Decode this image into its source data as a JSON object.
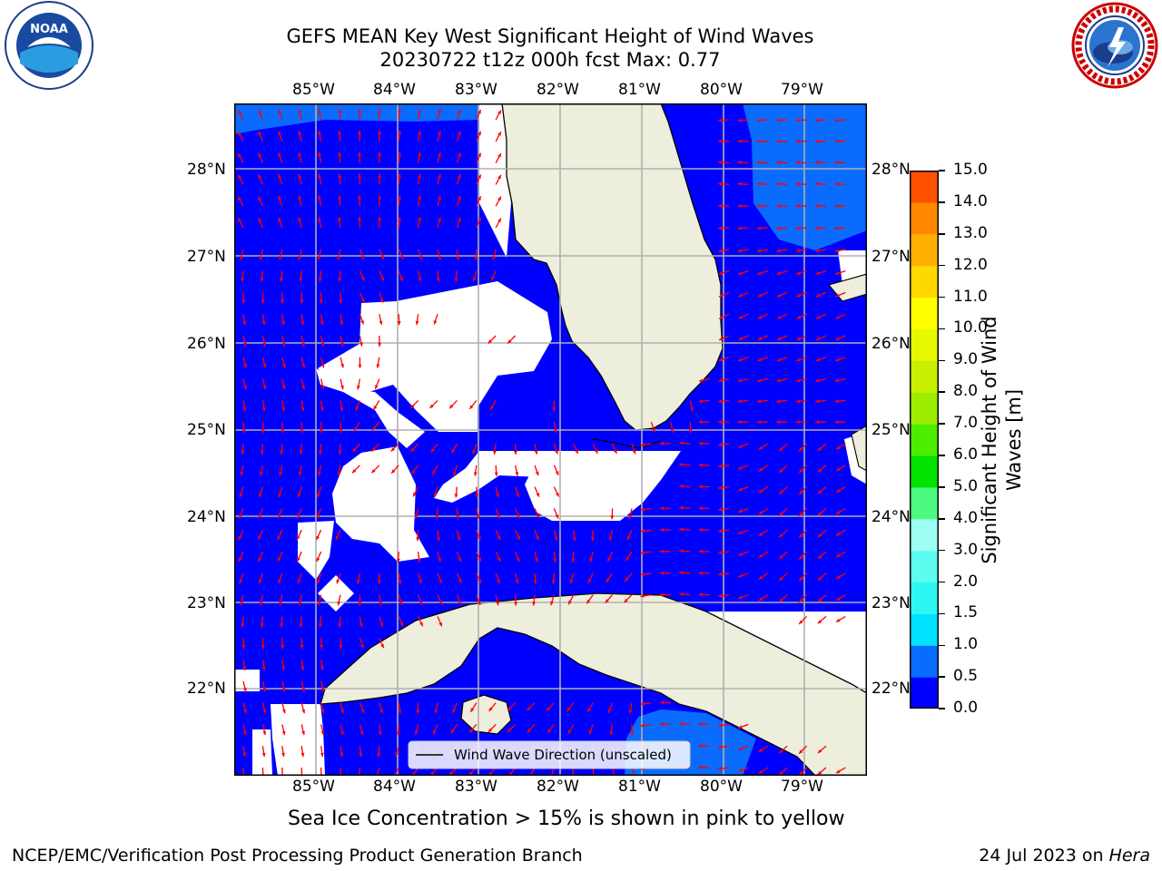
{
  "title": {
    "line1": "GEFS MEAN Key West Significant Height of Wind Waves",
    "line2": "20230722 t12z 000h fcst    Max: 0.77"
  },
  "map": {
    "lon_labels": [
      "85°W",
      "84°W",
      "83°W",
      "82°W",
      "81°W",
      "80°W",
      "79°W"
    ],
    "lat_labels": [
      "28°N",
      "27°N",
      "26°N",
      "25°N",
      "24°N",
      "23°N",
      "22°N"
    ],
    "legend_label": "Wind Wave Direction (unscaled)",
    "arrow_color": "#ff0000",
    "land_color": "#eeeedd",
    "water_color": "#0000ff"
  },
  "colorbar": {
    "label": "Significant Height of Wind Waves [m]",
    "label_line1": "Significant Height of Wind",
    "label_line2": "Waves [m]",
    "ticks": [
      "15.0",
      "14.0",
      "13.0",
      "12.0",
      "11.0",
      "10.0",
      "9.0",
      "8.0",
      "7.0",
      "6.0",
      "5.0",
      "4.0",
      "3.0",
      "2.0",
      "1.5",
      "1.0",
      "0.5",
      "0.0"
    ],
    "colors": [
      "#0000ff",
      "#0a6cff",
      "#00e2ff",
      "#2ef6f2",
      "#5dfbf0",
      "#9cfef4",
      "#4dfa80",
      "#00e400",
      "#4ded00",
      "#9ded00",
      "#c8f000",
      "#e8f800",
      "#ffff00",
      "#ffd800",
      "#ffb000",
      "#ff8800",
      "#ff5000",
      "#ff2000",
      "#ff0000"
    ]
  },
  "logos": {
    "noaa_text": "NOAA",
    "noaa_ring": "NATIONAL OCEANIC AND ATMOSPHERIC ADMINISTRATION · U.S. DEPARTMENT OF COMMERCE",
    "nws_ring": "NATIONAL WEATHER SERVICE"
  },
  "caption": "Sea Ice Concentration > 15% is shown in pink to yellow",
  "footer": {
    "left": "NCEP/EMC/Verification Post Processing Product Generation Branch",
    "right_date": "24 Jul 2023 on ",
    "right_host": "Hera"
  }
}
